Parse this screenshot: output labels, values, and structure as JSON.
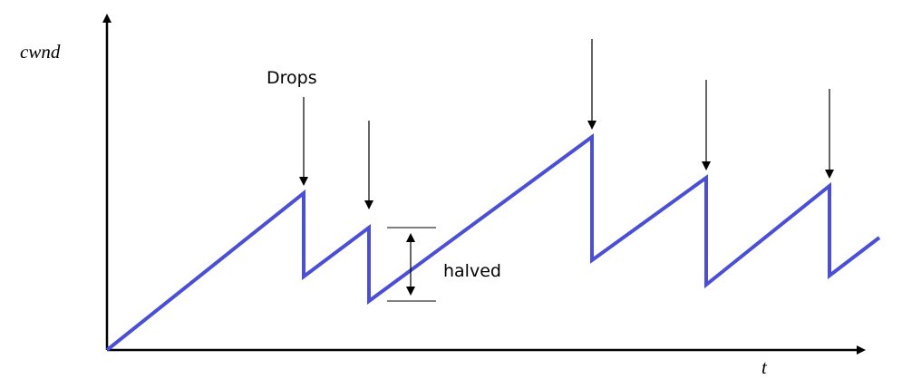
{
  "diagram": {
    "y_axis_label": "cwnd",
    "x_axis_label": "t",
    "drops_label": "Drops",
    "halved_label": "halved",
    "line_color": "#4a4fd6",
    "axis_color": "#000000",
    "annotation_color": "#000000"
  }
}
